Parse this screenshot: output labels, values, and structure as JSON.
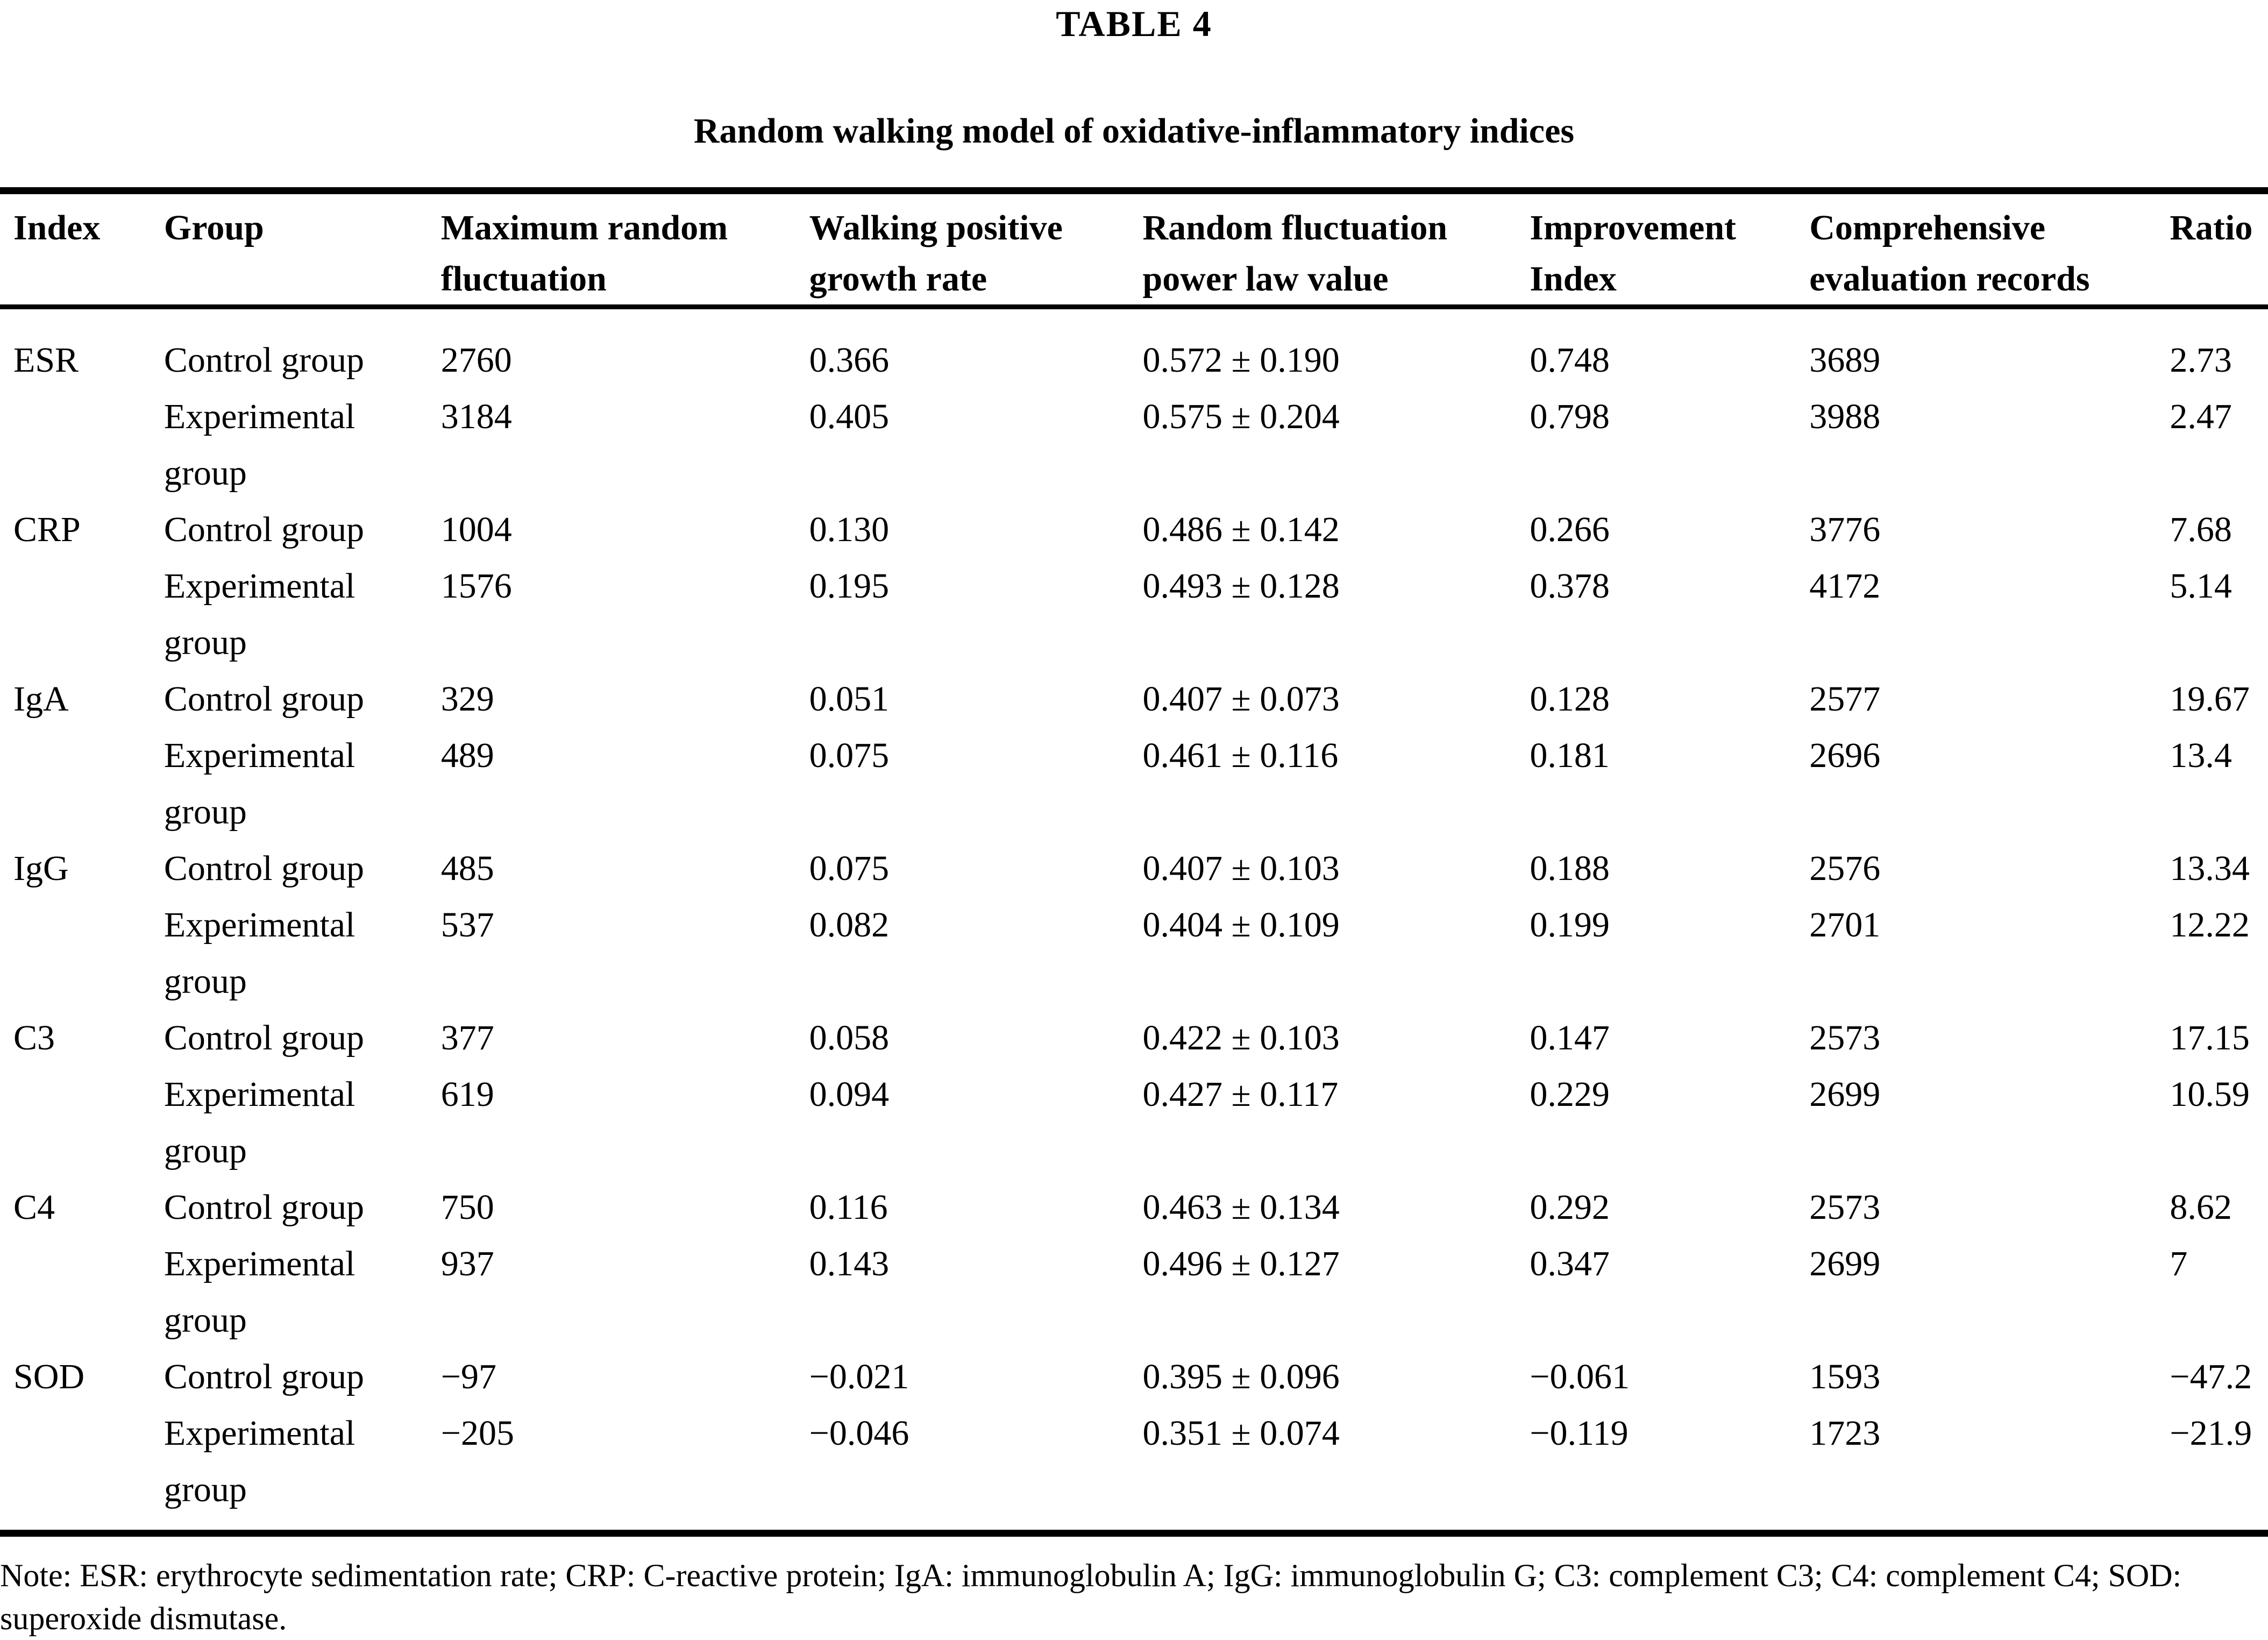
{
  "title": "TABLE 4",
  "subtitle": "Random walking model of oxidative-inflammatory indices",
  "table": {
    "columns": [
      "Index",
      "Group",
      "Maximum random fluctuation",
      "Walking positive growth rate",
      "Random fluctuation power law value",
      "Improvement Index",
      "Comprehensive evaluation records",
      "Ratio"
    ],
    "rows": [
      {
        "index": "ESR",
        "group": "Control group",
        "max_random_fluctuation": "2760",
        "walking_positive_growth_rate": "0.366",
        "random_fluctuation_power_law_value": "0.572 ± 0.190",
        "improvement_index": "0.748",
        "comprehensive_evaluation_records": "3689",
        "ratio": "2.73"
      },
      {
        "index": "",
        "group": "Experimental group",
        "max_random_fluctuation": "3184",
        "walking_positive_growth_rate": "0.405",
        "random_fluctuation_power_law_value": "0.575 ± 0.204",
        "improvement_index": "0.798",
        "comprehensive_evaluation_records": "3988",
        "ratio": "2.47"
      },
      {
        "index": "CRP",
        "group": "Control group",
        "max_random_fluctuation": "1004",
        "walking_positive_growth_rate": "0.130",
        "random_fluctuation_power_law_value": "0.486 ± 0.142",
        "improvement_index": "0.266",
        "comprehensive_evaluation_records": "3776",
        "ratio": "7.68"
      },
      {
        "index": "",
        "group": "Experimental group",
        "max_random_fluctuation": "1576",
        "walking_positive_growth_rate": "0.195",
        "random_fluctuation_power_law_value": "0.493 ± 0.128",
        "improvement_index": "0.378",
        "comprehensive_evaluation_records": "4172",
        "ratio": "5.14"
      },
      {
        "index": "IgA",
        "group": "Control group",
        "max_random_fluctuation": "329",
        "walking_positive_growth_rate": "0.051",
        "random_fluctuation_power_law_value": "0.407 ± 0.073",
        "improvement_index": "0.128",
        "comprehensive_evaluation_records": "2577",
        "ratio": "19.67"
      },
      {
        "index": "",
        "group": "Experimental group",
        "max_random_fluctuation": "489",
        "walking_positive_growth_rate": "0.075",
        "random_fluctuation_power_law_value": "0.461 ± 0.116",
        "improvement_index": "0.181",
        "comprehensive_evaluation_records": "2696",
        "ratio": "13.4"
      },
      {
        "index": "IgG",
        "group": "Control group",
        "max_random_fluctuation": "485",
        "walking_positive_growth_rate": "0.075",
        "random_fluctuation_power_law_value": "0.407 ± 0.103",
        "improvement_index": "0.188",
        "comprehensive_evaluation_records": "2576",
        "ratio": "13.34"
      },
      {
        "index": "",
        "group": "Experimental group",
        "max_random_fluctuation": "537",
        "walking_positive_growth_rate": "0.082",
        "random_fluctuation_power_law_value": "0.404 ± 0.109",
        "improvement_index": "0.199",
        "comprehensive_evaluation_records": "2701",
        "ratio": "12.22"
      },
      {
        "index": "C3",
        "group": "Control group",
        "max_random_fluctuation": "377",
        "walking_positive_growth_rate": "0.058",
        "random_fluctuation_power_law_value": "0.422 ± 0.103",
        "improvement_index": "0.147",
        "comprehensive_evaluation_records": "2573",
        "ratio": "17.15"
      },
      {
        "index": "",
        "group": "Experimental group",
        "max_random_fluctuation": "619",
        "walking_positive_growth_rate": "0.094",
        "random_fluctuation_power_law_value": "0.427 ± 0.117",
        "improvement_index": "0.229",
        "comprehensive_evaluation_records": "2699",
        "ratio": "10.59"
      },
      {
        "index": "C4",
        "group": "Control group",
        "max_random_fluctuation": "750",
        "walking_positive_growth_rate": "0.116",
        "random_fluctuation_power_law_value": "0.463 ± 0.134",
        "improvement_index": "0.292",
        "comprehensive_evaluation_records": "2573",
        "ratio": "8.62"
      },
      {
        "index": "",
        "group": "Experimental group",
        "max_random_fluctuation": "937",
        "walking_positive_growth_rate": "0.143",
        "random_fluctuation_power_law_value": "0.496 ± 0.127",
        "improvement_index": "0.347",
        "comprehensive_evaluation_records": "2699",
        "ratio": "7"
      },
      {
        "index": "SOD",
        "group": "Control group",
        "max_random_fluctuation": "−97",
        "walking_positive_growth_rate": "−0.021",
        "random_fluctuation_power_law_value": "0.395 ± 0.096",
        "improvement_index": "−0.061",
        "comprehensive_evaluation_records": "1593",
        "ratio": "−47.2"
      },
      {
        "index": "",
        "group": "Experimental group",
        "max_random_fluctuation": "−205",
        "walking_positive_growth_rate": "−0.046",
        "random_fluctuation_power_law_value": "0.351 ± 0.074",
        "improvement_index": "−0.119",
        "comprehensive_evaluation_records": "1723",
        "ratio": "−21.9"
      }
    ]
  },
  "note": "Note: ESR: erythrocyte sedimentation rate; CRP: C-reactive protein; IgA: immunoglobulin A; IgG: immunoglobulin G; C3: complement C3; C4: complement C4; SOD: superoxide dismutase."
}
